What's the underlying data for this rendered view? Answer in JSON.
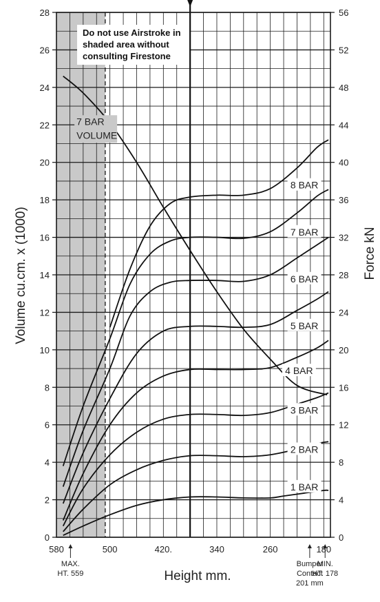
{
  "chart_data": {
    "type": "line",
    "xlabel": "Height mm.",
    "ylabel_left": "Volume cu.cm. x (1000)",
    "ylabel_right": "Force kN",
    "x_axis_reversed": true,
    "xlim": [
      580,
      170
    ],
    "ylim_left": [
      0,
      28
    ],
    "ylim_right": [
      0,
      56
    ],
    "x_ticks": [
      580,
      500,
      420,
      340,
      260,
      180
    ],
    "x_tick_labels": [
      "580",
      "500",
      "420.",
      "340",
      "260",
      "180"
    ],
    "y_left_ticks": [
      0,
      2,
      4,
      6,
      8,
      10,
      12,
      14,
      16,
      18,
      20,
      22,
      24,
      26,
      28
    ],
    "y_right_ticks": [
      0,
      4,
      8,
      12,
      16,
      20,
      24,
      28,
      32,
      36,
      40,
      44,
      48,
      52,
      56
    ],
    "grid": true,
    "notice": [
      "Do not use Airstroke in",
      "shaded area without",
      "consulting Firestone"
    ],
    "shaded_region_x": [
      580,
      507
    ],
    "markers": [
      {
        "label": [
          "MAX.",
          "HT. 559"
        ],
        "x": 559
      },
      {
        "label": [
          "Bumper",
          "Contact",
          "201 mm"
        ],
        "x": 201
      },
      {
        "label": [
          "MIN.",
          "HT. 178"
        ],
        "x": 178
      }
    ],
    "series": [
      {
        "name": "1 BAR",
        "label_at": [
          209,
          5.3
        ],
        "points": [
          [
            570,
            0.1
          ],
          [
            540,
            0.6
          ],
          [
            500,
            1.2
          ],
          [
            460,
            1.7
          ],
          [
            420,
            2.0
          ],
          [
            380,
            2.15
          ],
          [
            340,
            2.15
          ],
          [
            300,
            2.1
          ],
          [
            260,
            2.1
          ],
          [
            240,
            2.2
          ],
          [
            210,
            2.35
          ],
          [
            180,
            2.5
          ],
          [
            173,
            2.5
          ]
        ]
      },
      {
        "name": "2 BAR",
        "label_at": [
          209,
          9.3
        ],
        "points": [
          [
            570,
            0.3
          ],
          [
            540,
            1.5
          ],
          [
            500,
            2.8
          ],
          [
            460,
            3.6
          ],
          [
            420,
            4.1
          ],
          [
            380,
            4.35
          ],
          [
            340,
            4.35
          ],
          [
            300,
            4.3
          ],
          [
            260,
            4.4
          ],
          [
            220,
            4.7
          ],
          [
            190,
            5.0
          ],
          [
            173,
            5.1
          ]
        ]
      },
      {
        "name": "3 BAR",
        "label_at": [
          209,
          13.5
        ],
        "points": [
          [
            570,
            0.6
          ],
          [
            540,
            2.6
          ],
          [
            500,
            4.4
          ],
          [
            460,
            5.6
          ],
          [
            420,
            6.3
          ],
          [
            380,
            6.55
          ],
          [
            340,
            6.55
          ],
          [
            300,
            6.5
          ],
          [
            260,
            6.65
          ],
          [
            220,
            7.1
          ],
          [
            190,
            7.45
          ],
          [
            173,
            7.7
          ]
        ]
      },
      {
        "name": "4 BAR",
        "label_at": [
          217,
          17.7
        ],
        "points": [
          [
            570,
            0.9
          ],
          [
            540,
            3.4
          ],
          [
            500,
            6.0
          ],
          [
            460,
            7.7
          ],
          [
            420,
            8.6
          ],
          [
            380,
            8.95
          ],
          [
            340,
            8.95
          ],
          [
            300,
            8.95
          ],
          [
            260,
            9.05
          ],
          [
            220,
            9.6
          ],
          [
            190,
            10.1
          ],
          [
            173,
            10.5
          ]
        ]
      },
      {
        "name": "5 BAR",
        "label_at": [
          209,
          22.5
        ],
        "points": [
          [
            570,
            1.8
          ],
          [
            540,
            4.5
          ],
          [
            500,
            7.4
          ],
          [
            460,
            9.8
          ],
          [
            420,
            11.0
          ],
          [
            380,
            11.25
          ],
          [
            340,
            11.25
          ],
          [
            300,
            11.2
          ],
          [
            260,
            11.35
          ],
          [
            220,
            12.1
          ],
          [
            190,
            12.7
          ],
          [
            173,
            13.1
          ]
        ]
      },
      {
        "name": "6 BAR",
        "label_at": [
          209,
          27.5
        ],
        "points": [
          [
            570,
            2.7
          ],
          [
            540,
            5.7
          ],
          [
            500,
            9.0
          ],
          [
            470,
            11.8
          ],
          [
            440,
            13.1
          ],
          [
            410,
            13.6
          ],
          [
            380,
            13.7
          ],
          [
            340,
            13.7
          ],
          [
            300,
            13.65
          ],
          [
            260,
            14.0
          ],
          [
            220,
            14.9
          ],
          [
            190,
            15.6
          ],
          [
            173,
            16.0
          ]
        ]
      },
      {
        "name": "7 BAR",
        "label_at": [
          209,
          32.5
        ],
        "points": [
          [
            570,
            3.8
          ],
          [
            540,
            7.0
          ],
          [
            500,
            10.6
          ],
          [
            470,
            13.5
          ],
          [
            440,
            15.1
          ],
          [
            410,
            15.8
          ],
          [
            380,
            16.0
          ],
          [
            340,
            16.0
          ],
          [
            300,
            15.95
          ],
          [
            260,
            16.3
          ],
          [
            220,
            17.3
          ],
          [
            190,
            18.2
          ],
          [
            173,
            18.55
          ]
        ]
      },
      {
        "name": "8 BAR",
        "label_at": [
          209,
          37.5
        ],
        "points": [
          [
            500,
            11.2
          ],
          [
            470,
            14.3
          ],
          [
            440,
            16.6
          ],
          [
            410,
            17.8
          ],
          [
            380,
            18.15
          ],
          [
            340,
            18.25
          ],
          [
            300,
            18.25
          ],
          [
            260,
            18.6
          ],
          [
            220,
            19.7
          ],
          [
            190,
            20.8
          ],
          [
            173,
            21.2
          ]
        ]
      },
      {
        "name": "7 BAR VOLUME",
        "label_at": [
          550,
          22
        ],
        "points": [
          [
            570,
            24.6
          ],
          [
            540,
            23.7
          ],
          [
            500,
            22.1
          ],
          [
            460,
            20.0
          ],
          [
            420,
            17.6
          ],
          [
            380,
            15.3
          ],
          [
            340,
            13.1
          ],
          [
            300,
            11.1
          ],
          [
            260,
            9.5
          ],
          [
            220,
            8.1
          ],
          [
            175,
            7.6
          ]
        ]
      }
    ]
  }
}
